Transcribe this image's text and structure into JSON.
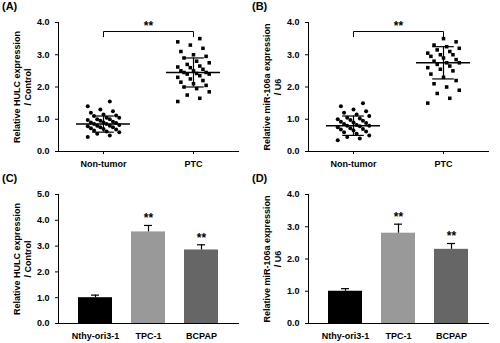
{
  "chart_data": [
    {
      "type": "scatter",
      "title": "(A)",
      "ylabel": [
        "Relative HULC expression",
        "/ Control"
      ],
      "ylim": [
        0,
        4
      ],
      "yticks": [
        0,
        1,
        2,
        3,
        4
      ],
      "series": [
        {
          "name": "Non-tumor",
          "marker": "circle",
          "color": "#000000",
          "mean": 0.85,
          "sd": 0.25,
          "values": [
            0.45,
            0.5,
            0.55,
            0.6,
            0.62,
            0.65,
            0.68,
            0.7,
            0.72,
            0.75,
            0.75,
            0.78,
            0.8,
            0.8,
            0.82,
            0.85,
            0.85,
            0.88,
            0.9,
            0.9,
            0.92,
            0.95,
            0.98,
            1.0,
            1.0,
            1.05,
            1.05,
            1.1,
            1.12,
            1.15,
            1.2,
            1.25,
            1.3,
            1.4,
            1.55
          ]
        },
        {
          "name": "PTC",
          "marker": "square",
          "color": "#000000",
          "mean": 2.45,
          "sd": 0.45,
          "values": [
            1.55,
            1.65,
            1.75,
            1.85,
            1.95,
            2.0,
            2.05,
            2.1,
            2.15,
            2.2,
            2.25,
            2.3,
            2.35,
            2.4,
            2.4,
            2.42,
            2.45,
            2.45,
            2.5,
            2.5,
            2.55,
            2.6,
            2.62,
            2.65,
            2.7,
            2.75,
            2.8,
            2.9,
            2.95,
            3.0,
            3.1,
            3.2,
            3.3,
            3.4,
            3.5
          ]
        }
      ],
      "annotations": [
        {
          "text": "**",
          "between": [
            "Non-tumor",
            "PTC"
          ]
        }
      ]
    },
    {
      "type": "scatter",
      "title": "(B)",
      "ylabel": [
        "Relative miR-106a expression",
        "/ U6"
      ],
      "ylim": [
        0,
        4
      ],
      "yticks": [
        0,
        1,
        2,
        3,
        4
      ],
      "series": [
        {
          "name": "Non-tumor",
          "marker": "circle",
          "color": "#000000",
          "mean": 0.8,
          "sd": 0.3,
          "values": [
            0.35,
            0.4,
            0.45,
            0.5,
            0.55,
            0.6,
            0.62,
            0.65,
            0.68,
            0.7,
            0.72,
            0.75,
            0.78,
            0.8,
            0.8,
            0.82,
            0.85,
            0.88,
            0.9,
            0.92,
            0.95,
            0.98,
            1.0,
            1.02,
            1.05,
            1.1,
            1.15,
            1.2,
            1.25,
            1.3,
            1.4,
            1.5
          ]
        },
        {
          "name": "PTC",
          "marker": "square",
          "color": "#000000",
          "mean": 2.75,
          "sd": 0.5,
          "values": [
            1.5,
            1.65,
            1.8,
            1.9,
            2.0,
            2.1,
            2.2,
            2.3,
            2.4,
            2.5,
            2.55,
            2.6,
            2.65,
            2.7,
            2.75,
            2.75,
            2.8,
            2.85,
            2.9,
            2.95,
            3.0,
            3.0,
            3.05,
            3.1,
            3.15,
            3.2,
            3.25,
            3.3,
            3.4,
            3.5
          ]
        }
      ],
      "annotations": [
        {
          "text": "**",
          "between": [
            "Non-tumor",
            "PTC"
          ]
        }
      ]
    },
    {
      "type": "bar",
      "title": "(C)",
      "ylabel": [
        "Relative HULC expression",
        "/ Control"
      ],
      "ylim": [
        0,
        5
      ],
      "yticks": [
        0,
        1,
        2,
        3,
        4,
        5
      ],
      "categories": [
        "Nthy-ori3-1",
        "TPC-1",
        "BCPAP"
      ],
      "values": [
        1.0,
        3.55,
        2.85
      ],
      "error": [
        0.1,
        0.25,
        0.2
      ],
      "colors": [
        "#000000",
        "#999999",
        "#666666"
      ],
      "significance": [
        null,
        "**",
        "**"
      ]
    },
    {
      "type": "bar",
      "title": "(D)",
      "ylabel": [
        "Relative miR-106a expression",
        "/ U6"
      ],
      "ylim": [
        0,
        4
      ],
      "yticks": [
        0,
        1,
        2,
        3,
        4
      ],
      "categories": [
        "Nthy-ori3-1",
        "TPC-1",
        "BCPAP"
      ],
      "values": [
        1.0,
        2.8,
        2.3
      ],
      "error": [
        0.08,
        0.28,
        0.18
      ],
      "colors": [
        "#000000",
        "#999999",
        "#666666"
      ],
      "significance": [
        null,
        "**",
        "**"
      ]
    }
  ]
}
